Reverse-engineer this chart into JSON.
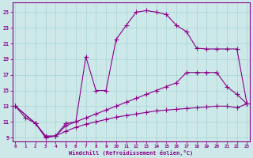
{
  "xlabel": "Windchill (Refroidissement éolien,°C)",
  "x_ticks": [
    0,
    1,
    2,
    3,
    4,
    5,
    6,
    7,
    8,
    9,
    10,
    11,
    12,
    13,
    14,
    15,
    16,
    17,
    18,
    19,
    20,
    21,
    22,
    23
  ],
  "y_ticks": [
    9,
    11,
    13,
    15,
    17,
    19,
    21,
    23,
    25
  ],
  "ylim": [
    8.5,
    26.2
  ],
  "xlim": [
    -0.3,
    23.3
  ],
  "bg_color": "#cce8e8",
  "line_color": "#880088",
  "curve1_x": [
    0,
    1,
    2,
    3,
    4,
    5,
    6,
    7,
    8,
    9,
    10,
    11,
    12,
    13,
    14,
    15,
    16,
    17,
    18,
    19,
    20,
    21,
    22,
    23
  ],
  "curve1_y": [
    13.0,
    11.5,
    10.8,
    9.0,
    9.2,
    10.8,
    11.0,
    19.3,
    15.0,
    15.0,
    21.5,
    23.3,
    25.0,
    25.2,
    25.0,
    24.7,
    23.3,
    22.5,
    20.4,
    20.3,
    20.3,
    20.3,
    20.3,
    13.3
  ],
  "curve2_x": [
    0,
    2,
    3,
    4,
    5,
    6,
    7,
    8,
    9,
    10,
    11,
    12,
    13,
    14,
    15,
    16,
    17,
    18,
    19,
    20,
    21,
    22,
    23
  ],
  "curve2_y": [
    13.0,
    10.8,
    9.2,
    9.2,
    10.5,
    11.0,
    11.5,
    12.0,
    12.5,
    13.0,
    13.5,
    14.0,
    14.5,
    15.0,
    15.5,
    16.0,
    17.3,
    17.3,
    17.3,
    17.3,
    15.5,
    14.5,
    13.3
  ],
  "curve3_x": [
    0,
    2,
    3,
    4,
    5,
    6,
    7,
    8,
    9,
    10,
    11,
    12,
    13,
    14,
    15,
    16,
    17,
    18,
    19,
    20,
    21,
    22,
    23
  ],
  "curve3_y": [
    13.0,
    10.8,
    9.0,
    9.2,
    9.8,
    10.3,
    10.7,
    11.0,
    11.3,
    11.6,
    11.8,
    12.0,
    12.2,
    12.4,
    12.5,
    12.6,
    12.7,
    12.8,
    12.9,
    13.0,
    13.0,
    12.8,
    13.3
  ]
}
